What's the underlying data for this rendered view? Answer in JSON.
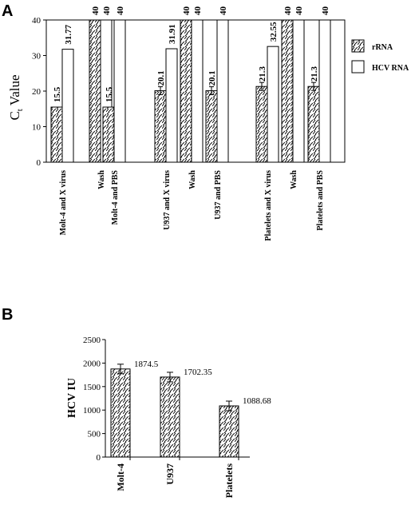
{
  "chart_data": [
    {
      "panel": "A",
      "type": "bar",
      "ylabel_main": "C",
      "ylabel_sub": "t",
      "ylabel_rest": " Value",
      "ylim": [
        0,
        40
      ],
      "yticks": [
        0,
        10,
        20,
        30,
        40
      ],
      "categories": [
        "Molt-4 and X virus",
        "Wash",
        "Molt-4 and PBS",
        "U937 and X virus",
        "Wash",
        "U937 and PBS",
        "Platelets and X virus",
        "Wash",
        "Platelets and PBS"
      ],
      "series": [
        {
          "name": "rRNA",
          "values": [
            15.5,
            40,
            15.5,
            20.1,
            40,
            20.1,
            21.3,
            40,
            21.3
          ],
          "labels": [
            "15.5",
            "40",
            "15.5",
            "20.1",
            "40",
            "20.1",
            "21.3",
            "40",
            "21.3"
          ],
          "error_bars": [
            false,
            false,
            false,
            true,
            false,
            true,
            true,
            false,
            true
          ]
        },
        {
          "name": "HCV RNA",
          "values": [
            31.77,
            40,
            40,
            31.91,
            40,
            40,
            32.55,
            40,
            40
          ],
          "labels": [
            "31.77",
            "40",
            "40",
            "31.91",
            "40",
            "40",
            "32.55",
            "40",
            "40"
          ],
          "error_bars": [
            false,
            false,
            false,
            false,
            false,
            false,
            false,
            false,
            false
          ]
        }
      ],
      "legend_position": "right",
      "grid": false
    },
    {
      "panel": "B",
      "type": "bar",
      "ylabel": "HCV IU",
      "ylim": [
        0,
        2500
      ],
      "yticks": [
        0,
        500,
        1000,
        1500,
        2000,
        2500
      ],
      "categories": [
        "Molt-4",
        "U937",
        "Platelets"
      ],
      "values": [
        1874.5,
        1702.35,
        1088.68
      ],
      "labels": [
        "1874.5",
        "1702.35",
        "1088.68"
      ],
      "grid": false
    }
  ]
}
